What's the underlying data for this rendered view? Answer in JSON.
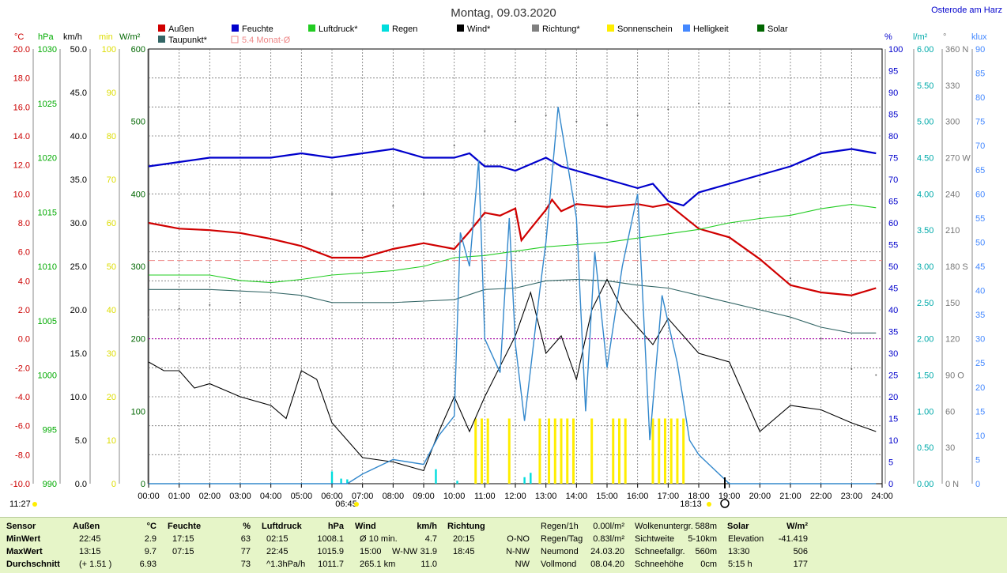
{
  "header": {
    "title": "Montag, 09.03.2020",
    "location": "Osterode am Harz"
  },
  "legend": [
    {
      "label": "Außen",
      "color": "#d00000"
    },
    {
      "label": "Feuchte",
      "color": "#0000cc"
    },
    {
      "label": "Luftdruck*",
      "color": "#22cc22"
    },
    {
      "label": "Regen",
      "color": "#00dddd"
    },
    {
      "label": "Wind*",
      "color": "#000000"
    },
    {
      "label": "Richtung*",
      "color": "#808080"
    },
    {
      "label": "Sonnenschein",
      "color": "#ffee00"
    },
    {
      "label": "Helligkeit",
      "color": "#4488ff"
    },
    {
      "label": "Solar",
      "color": "#006600"
    },
    {
      "label": "Taupunkt*",
      "color": "#336666"
    },
    {
      "label": "5.4 Monat-Ø",
      "color": "#ee8888"
    }
  ],
  "axis_units": {
    "temp": "°C",
    "pressure": "hPa",
    "wind": "km/h",
    "sunmin": "min",
    "solar": "W/m²",
    "humidity": "%",
    "rain": "l/m²",
    "direction": "°",
    "lux": "klux"
  },
  "annotations": {
    "sunrise": "06:45",
    "sunset": "18:13",
    "now": "11:27"
  },
  "chart_data": {
    "type": "line",
    "title": "Montag, 09.03.2020",
    "x_ticks": [
      "00:00",
      "01:00",
      "02:00",
      "03:00",
      "04:00",
      "05:00",
      "06:00",
      "07:00",
      "08:00",
      "09:00",
      "10:00",
      "11:00",
      "12:00",
      "13:00",
      "14:00",
      "15:00",
      "16:00",
      "17:00",
      "18:00",
      "19:00",
      "20:00",
      "21:00",
      "22:00",
      "23:00",
      "24:00"
    ],
    "axes": {
      "temp": {
        "min": -10,
        "max": 20,
        "ticks": [
          "20.0",
          "18.0",
          "16.0",
          "14.0",
          "12.0",
          "10.0",
          "8.0",
          "6.0",
          "4.0",
          "2.0",
          "0.0",
          "-2.0",
          "-4.0",
          "-6.0",
          "-8.0",
          "-10.0"
        ]
      },
      "pressure": {
        "min": 990,
        "max": 1030,
        "ticks": [
          "1030",
          "1025",
          "1020",
          "1015",
          "1010",
          "1005",
          "1000",
          "995",
          "990"
        ]
      },
      "wind": {
        "min": 0,
        "max": 50,
        "ticks": [
          "50.0",
          "45.0",
          "40.0",
          "35.0",
          "30.0",
          "25.0",
          "20.0",
          "15.0",
          "10.0",
          "5.0",
          "0.0"
        ]
      },
      "sunmin": {
        "min": 0,
        "max": 100,
        "ticks": [
          "100",
          "90",
          "80",
          "70",
          "60",
          "50",
          "40",
          "30",
          "20",
          "10",
          "0"
        ]
      },
      "solar": {
        "min": 0,
        "max": 600,
        "ticks": [
          "600",
          "500",
          "400",
          "300",
          "200",
          "100",
          "0"
        ]
      },
      "humidity": {
        "min": 0,
        "max": 100,
        "ticks": [
          "100",
          "95",
          "90",
          "85",
          "80",
          "75",
          "70",
          "65",
          "60",
          "55",
          "50",
          "45",
          "40",
          "35",
          "30",
          "25",
          "20",
          "15",
          "10",
          "5",
          "0"
        ]
      },
      "rain": {
        "min": 0,
        "max": 6,
        "ticks": [
          "6.00",
          "5.50",
          "5.00",
          "4.50",
          "4.00",
          "3.50",
          "3.00",
          "2.50",
          "2.00",
          "1.50",
          "1.00",
          "0.50",
          "0.00"
        ]
      },
      "direction": {
        "min": 0,
        "max": 360,
        "ticks": [
          "360 N",
          "330",
          "300",
          "270 W",
          "240",
          "210",
          "180 S",
          "150",
          "120",
          "90 O",
          "60",
          "30",
          "0 N"
        ]
      },
      "lux": {
        "min": 0,
        "max": 90,
        "ticks": [
          "90",
          "85",
          "80",
          "75",
          "70",
          "65",
          "60",
          "55",
          "50",
          "45",
          "40",
          "35",
          "30",
          "25",
          "20",
          "15",
          "10",
          "5",
          "0"
        ]
      }
    },
    "series": [
      {
        "name": "Außen",
        "axis": "temp",
        "color": "#d00000",
        "points": [
          [
            0,
            8
          ],
          [
            1,
            7.6
          ],
          [
            2,
            7.5
          ],
          [
            3,
            7.3
          ],
          [
            4,
            6.9
          ],
          [
            5,
            6.4
          ],
          [
            6,
            5.6
          ],
          [
            7,
            5.6
          ],
          [
            8,
            6.2
          ],
          [
            9,
            6.6
          ],
          [
            10,
            6.2
          ],
          [
            10.5,
            7.4
          ],
          [
            11,
            8.7
          ],
          [
            11.5,
            8.5
          ],
          [
            12,
            9
          ],
          [
            12.2,
            6.8
          ],
          [
            12.5,
            7.6
          ],
          [
            13,
            8.9
          ],
          [
            13.2,
            9.6
          ],
          [
            13.5,
            8.8
          ],
          [
            14,
            9.3
          ],
          [
            15,
            9.1
          ],
          [
            16,
            9.3
          ],
          [
            16.5,
            9.1
          ],
          [
            17,
            9.3
          ],
          [
            18,
            7.6
          ],
          [
            19,
            7
          ],
          [
            20,
            5.5
          ],
          [
            21,
            3.7
          ],
          [
            22,
            3.2
          ],
          [
            23,
            3
          ],
          [
            23.8,
            3.5
          ]
        ]
      },
      {
        "name": "Taupunkt*",
        "axis": "temp",
        "color": "#336666",
        "points": [
          [
            0,
            3.4
          ],
          [
            2,
            3.4
          ],
          [
            3,
            3.3
          ],
          [
            4,
            3.2
          ],
          [
            5,
            3
          ],
          [
            6,
            2.5
          ],
          [
            7,
            2.5
          ],
          [
            8,
            2.5
          ],
          [
            9,
            2.6
          ],
          [
            10,
            2.7
          ],
          [
            11,
            3.4
          ],
          [
            12,
            3.5
          ],
          [
            13,
            4
          ],
          [
            14,
            4.1
          ],
          [
            15,
            4
          ],
          [
            16,
            3.7
          ],
          [
            17,
            3.5
          ],
          [
            18,
            3
          ],
          [
            19,
            2.5
          ],
          [
            20,
            2
          ],
          [
            21,
            1.5
          ],
          [
            22,
            0.8
          ],
          [
            23,
            0.4
          ],
          [
            23.8,
            0.4
          ]
        ]
      },
      {
        "name": "Feuchte",
        "axis": "humidity",
        "color": "#0000cc",
        "points": [
          [
            0,
            73
          ],
          [
            1,
            74
          ],
          [
            2,
            75
          ],
          [
            3,
            75
          ],
          [
            4,
            75
          ],
          [
            5,
            76
          ],
          [
            6,
            75
          ],
          [
            7,
            76
          ],
          [
            8,
            77
          ],
          [
            9,
            75
          ],
          [
            10,
            75
          ],
          [
            10.5,
            76
          ],
          [
            11,
            73
          ],
          [
            11.5,
            73
          ],
          [
            12,
            72
          ],
          [
            13,
            75
          ],
          [
            13.5,
            73
          ],
          [
            14,
            72
          ],
          [
            15,
            70
          ],
          [
            16,
            68
          ],
          [
            16.5,
            69
          ],
          [
            17,
            65
          ],
          [
            17.5,
            64
          ],
          [
            18,
            67
          ],
          [
            19,
            69
          ],
          [
            20,
            71
          ],
          [
            21,
            73
          ],
          [
            22,
            76
          ],
          [
            23,
            77
          ],
          [
            23.8,
            76
          ]
        ]
      },
      {
        "name": "Luftdruck*",
        "axis": "pressure",
        "color": "#22cc22",
        "points": [
          [
            0,
            1009.2
          ],
          [
            2,
            1009.2
          ],
          [
            3,
            1008.7
          ],
          [
            4,
            1008.5
          ],
          [
            5,
            1008.8
          ],
          [
            6,
            1009.2
          ],
          [
            7,
            1009.4
          ],
          [
            8,
            1009.6
          ],
          [
            9,
            1010
          ],
          [
            10,
            1010.8
          ],
          [
            11,
            1011
          ],
          [
            12,
            1011.4
          ],
          [
            13,
            1011.8
          ],
          [
            14,
            1012
          ],
          [
            15,
            1012.2
          ],
          [
            16,
            1012.6
          ],
          [
            17,
            1013
          ],
          [
            18,
            1013.4
          ],
          [
            19,
            1014
          ],
          [
            20,
            1014.4
          ],
          [
            21,
            1014.7
          ],
          [
            22,
            1015.3
          ],
          [
            23,
            1015.7
          ],
          [
            23.8,
            1015.4
          ]
        ]
      },
      {
        "name": "Wind*",
        "axis": "wind",
        "color": "#000000",
        "points": [
          [
            0,
            14
          ],
          [
            0.5,
            13
          ],
          [
            1,
            13
          ],
          [
            1.5,
            11
          ],
          [
            2,
            11.5
          ],
          [
            3,
            10
          ],
          [
            4,
            9
          ],
          [
            4.5,
            7.5
          ],
          [
            5,
            13
          ],
          [
            5.5,
            12
          ],
          [
            6,
            7
          ],
          [
            7,
            3
          ],
          [
            8,
            2.5
          ],
          [
            9,
            1.5
          ],
          [
            9.5,
            6
          ],
          [
            10,
            10
          ],
          [
            10.5,
            6
          ],
          [
            11,
            10
          ],
          [
            12,
            17
          ],
          [
            12.5,
            22
          ],
          [
            13,
            15
          ],
          [
            13.5,
            17
          ],
          [
            14,
            12
          ],
          [
            14.5,
            20
          ],
          [
            15,
            23.5
          ],
          [
            15.5,
            20
          ],
          [
            16,
            18
          ],
          [
            16.5,
            16
          ],
          [
            17,
            19
          ],
          [
            18,
            15
          ],
          [
            19,
            14
          ],
          [
            20,
            6
          ],
          [
            21,
            9
          ],
          [
            22,
            8.5
          ],
          [
            23,
            7
          ],
          [
            23.8,
            6
          ]
        ]
      },
      {
        "name": "Helligkeit",
        "axis": "lux",
        "color": "#3388cc",
        "points": [
          [
            0,
            0
          ],
          [
            6.5,
            0
          ],
          [
            7,
            2
          ],
          [
            8,
            5
          ],
          [
            9,
            4
          ],
          [
            9.5,
            10
          ],
          [
            10,
            14
          ],
          [
            10.2,
            52
          ],
          [
            10.5,
            45
          ],
          [
            10.8,
            67
          ],
          [
            11,
            30
          ],
          [
            11.5,
            23
          ],
          [
            11.8,
            55
          ],
          [
            12,
            29
          ],
          [
            12.3,
            13
          ],
          [
            12.8,
            40
          ],
          [
            13,
            50
          ],
          [
            13.4,
            78
          ],
          [
            14,
            55
          ],
          [
            14.3,
            15
          ],
          [
            14.6,
            48
          ],
          [
            15,
            24
          ],
          [
            15.5,
            45
          ],
          [
            16,
            60
          ],
          [
            16.4,
            9
          ],
          [
            16.8,
            39
          ],
          [
            17.3,
            25
          ],
          [
            17.7,
            9
          ],
          [
            18,
            6
          ],
          [
            19,
            0
          ],
          [
            23.8,
            0
          ]
        ]
      },
      {
        "name": "Richtung*",
        "axis": "direction",
        "color": "#606060",
        "points": [
          [
            0,
            138
          ],
          [
            1,
            145
          ],
          [
            2,
            148
          ],
          [
            3,
            150
          ],
          [
            4,
            160
          ],
          [
            5,
            210
          ],
          [
            6,
            240
          ],
          [
            7,
            210
          ],
          [
            8,
            230
          ],
          [
            9,
            240
          ],
          [
            10,
            280
          ],
          [
            11,
            292
          ],
          [
            12,
            300
          ],
          [
            13,
            305
          ],
          [
            14,
            300
          ],
          [
            15,
            297
          ],
          [
            16,
            305
          ],
          [
            17,
            310
          ],
          [
            18,
            315
          ],
          [
            19,
            315
          ],
          [
            20,
            250
          ],
          [
            21,
            170
          ],
          [
            22,
            120
          ],
          [
            23,
            95
          ],
          [
            23.8,
            90
          ]
        ]
      }
    ],
    "sunshine_minutes_hour": [
      10.7,
      10.9,
      11.1,
      11.8,
      12.8,
      13.1,
      13.3,
      13.5,
      13.7,
      13.9,
      14.5,
      15.2,
      15.4,
      15.6,
      16.5,
      16.7,
      16.9,
      17.1,
      17.3,
      17.5
    ],
    "rain_bars_hour": [
      6.0,
      6.3,
      6.5,
      9.4,
      10.1,
      12.3,
      12.5
    ],
    "references": [
      {
        "label": "5.4 Monat-Ø",
        "axis": "temp",
        "value": 5.4,
        "color": "#ee8888"
      }
    ]
  },
  "footer": {
    "sensor": {
      "title": "Sensor",
      "rows": [
        "MinWert",
        "MaxWert",
        "Durchschnitt"
      ]
    },
    "aussen": {
      "title": "Außen",
      "unit": "°C",
      "rows": [
        [
          "22:45",
          "2.9"
        ],
        [
          "13:15",
          "9.7"
        ],
        [
          "(+ 1.51 )",
          "6.93"
        ]
      ]
    },
    "feuchte": {
      "title": "Feuchte",
      "unit": "%",
      "rows": [
        [
          "17:15",
          "63"
        ],
        [
          "07:15",
          "77"
        ],
        [
          "",
          "73"
        ]
      ]
    },
    "luftdruck": {
      "title": "Luftdruck",
      "unit": "hPa",
      "rows": [
        [
          "02:15",
          "1008.1"
        ],
        [
          "22:45",
          "1015.9"
        ],
        [
          "^1.3hPa/h",
          "1011.7"
        ]
      ]
    },
    "wind": {
      "title": "Wind",
      "unit": "km/h",
      "rows": [
        [
          "Ø 10 min.",
          "",
          "4.7"
        ],
        [
          "15:00",
          "W-NW",
          "31.9"
        ],
        [
          "265.1 km",
          "",
          "11.0"
        ]
      ]
    },
    "richtung": {
      "title": "Richtung",
      "rows": [
        [
          "20:15",
          "O-NO"
        ],
        [
          "18:45",
          "N-NW"
        ],
        [
          "",
          "NW"
        ]
      ]
    },
    "regen": {
      "rows": [
        [
          "Regen/1h",
          "0.00l/m²"
        ],
        [
          "Regen/Tag",
          "0.83l/m²"
        ],
        [
          "Neumond",
          "24.03.20"
        ],
        [
          "Vollmond",
          "08.04.20"
        ]
      ]
    },
    "wolken": {
      "rows": [
        [
          "Wolkenuntergr.",
          "588m"
        ],
        [
          "Sichtweite",
          "5-10km"
        ],
        [
          "Schneefallgr.",
          "560m"
        ],
        [
          "Schneehöhe",
          "0cm"
        ]
      ]
    },
    "solar": {
      "title": "Solar",
      "unit": "W/m²",
      "rows": [
        [
          "Elevation",
          "-41.419"
        ],
        [
          "13:30",
          "506"
        ],
        [
          "5:15 h",
          "177"
        ]
      ]
    }
  }
}
